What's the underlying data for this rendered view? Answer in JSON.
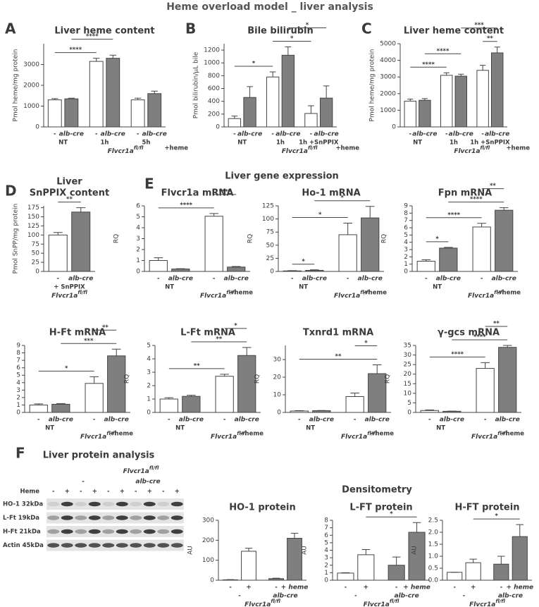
{
  "header": {
    "title": "Heme overload model _ liver analysis"
  },
  "sections": [
    {
      "letter": "E",
      "title": "Liver gene expression"
    },
    {
      "letter": "F",
      "title": "Liver protein analysis"
    },
    {
      "title": "Densitometry"
    }
  ],
  "blot": {
    "genotype": "Flvcr1a",
    "genotype_sup": "fl/fl",
    "groups": [
      "-",
      "alb-cre"
    ],
    "row_label": "Heme",
    "lanes": [
      "-",
      "+",
      "-",
      "+",
      "-",
      "+",
      "-",
      "+",
      "-",
      "+"
    ],
    "bands": [
      "HO-1 32kDa",
      "L-Ft 19kDa",
      "H-Ft 21kDa",
      "Actin 45kDa"
    ]
  },
  "chart_data": [
    {
      "type": "bar",
      "panel": "A",
      "title": "Liver heme content",
      "ylabel": "Pmol heme/mg protein",
      "categories": [
        "-",
        "alb-cre",
        "-",
        "alb-cre",
        "-",
        "alb-cre"
      ],
      "values": [
        1300,
        1350,
        3150,
        3300,
        1300,
        1600
      ],
      "errors": [
        60,
        30,
        150,
        150,
        80,
        120
      ],
      "colors": [
        "#ffffff",
        "#7f7f7f",
        "#ffffff",
        "#7f7f7f",
        "#ffffff",
        "#7f7f7f"
      ],
      "ylim": [
        0,
        4000
      ],
      "yticks": [
        0,
        1000,
        2000,
        3000
      ],
      "pairs": [
        "NT",
        "1h",
        "5h"
      ],
      "treatment": "+heme",
      "genotype": "Flvcr1a",
      "genotype_sup": "fl/fl",
      "significance": [
        {
          "label": "****",
          "bars": [
            0,
            2
          ]
        },
        {
          "label": "****",
          "bars": [
            1,
            3
          ]
        }
      ]
    },
    {
      "type": "bar",
      "panel": "B",
      "title": "Bile bilirubin",
      "ylabel": "Pmol bilirubin/μL bile",
      "categories": [
        "-",
        "alb-cre",
        "-",
        "alb-cre",
        "-",
        "alb-cre"
      ],
      "values": [
        130,
        460,
        780,
        1120,
        210,
        450
      ],
      "errors": [
        40,
        170,
        80,
        130,
        120,
        190
      ],
      "colors": [
        "#ffffff",
        "#7f7f7f",
        "#ffffff",
        "#7f7f7f",
        "#ffffff",
        "#7f7f7f"
      ],
      "ylim": [
        0,
        1300
      ],
      "yticks": [
        0,
        200,
        400,
        600,
        800,
        1000,
        1200
      ],
      "pairs": [
        "NT",
        "1h",
        "1h +SnPPIX"
      ],
      "treatment": "+heme",
      "genotype": "Flvcr1a",
      "genotype_sup": "fl/fl",
      "significance": [
        {
          "label": "*",
          "bars": [
            0,
            2
          ]
        },
        {
          "label": "*",
          "bars": [
            2,
            4
          ]
        },
        {
          "label": "*",
          "bars": [
            3,
            5
          ]
        }
      ]
    },
    {
      "type": "bar",
      "panel": "C",
      "title": "Liver heme content",
      "ylabel": "Pmol heme/mg protein",
      "categories": [
        "-",
        "alb-cre",
        "-",
        "alb-cre",
        "-",
        "alb-cre"
      ],
      "values": [
        1550,
        1600,
        3100,
        3050,
        3400,
        4450
      ],
      "errors": [
        120,
        100,
        150,
        120,
        300,
        350
      ],
      "colors": [
        "#ffffff",
        "#7f7f7f",
        "#ffffff",
        "#7f7f7f",
        "#ffffff",
        "#7f7f7f"
      ],
      "ylim": [
        0,
        5000
      ],
      "yticks": [
        0,
        1000,
        2000,
        3000,
        4000,
        5000
      ],
      "pairs": [
        "NT",
        "1h",
        "1h +SnPPIX"
      ],
      "treatment": "+heme",
      "genotype": "Flvcr1a",
      "genotype_sup": "fl/fl",
      "significance": [
        {
          "label": "****",
          "bars": [
            0,
            2
          ]
        },
        {
          "label": "****",
          "bars": [
            1,
            3
          ]
        },
        {
          "label": "**",
          "bars": [
            4,
            5
          ]
        },
        {
          "label": "***",
          "bars": [
            3,
            5
          ]
        }
      ]
    },
    {
      "type": "bar",
      "panel": "D",
      "title": [
        "Liver",
        "SnPPIX content"
      ],
      "ylabel": "Pmol SnPP/mg protein",
      "categories": [
        "-",
        "alb-cre"
      ],
      "values": [
        100,
        163
      ],
      "errors": [
        7,
        12
      ],
      "colors": [
        "#ffffff",
        "#7f7f7f"
      ],
      "ylim": [
        0,
        180
      ],
      "yticks": [
        0,
        25,
        50,
        75,
        100,
        125,
        150,
        175
      ],
      "pairs": [
        "+ SnPPIX"
      ],
      "genotype": "Flvcr1a",
      "genotype_sup": "fl/fl",
      "significance": [
        {
          "label": "**",
          "bars": [
            0,
            1
          ]
        }
      ]
    },
    {
      "type": "bar",
      "title": "Flvcr1a mRNA",
      "ylabel": "RQ",
      "categories": [
        "-",
        "alb-cre",
        "-",
        "alb-cre"
      ],
      "values": [
        1.0,
        0.22,
        5.05,
        0.4
      ],
      "errors": [
        0.25,
        0.03,
        0.25,
        0.05
      ],
      "colors": [
        "#ffffff",
        "#7f7f7f",
        "#ffffff",
        "#7f7f7f"
      ],
      "ylim": [
        0,
        6
      ],
      "yticks": [
        0,
        1,
        2,
        3,
        4,
        5,
        6
      ],
      "pairs": [
        "NT",
        null
      ],
      "treatment": "+heme",
      "genotype": "Flvcr1a",
      "genotype_sup": "fl/fl",
      "significance": [
        {
          "label": "****",
          "bars": [
            0,
            2
          ]
        },
        {
          "label": "****",
          "bars": [
            2,
            3
          ]
        }
      ]
    },
    {
      "type": "bar",
      "title": "Ho-1 mRNA",
      "ylabel": "RQ",
      "categories": [
        "-",
        "alb-cre",
        "-",
        "alb-cre"
      ],
      "values": [
        1,
        2,
        70,
        102
      ],
      "errors": [
        0.5,
        1,
        22,
        22
      ],
      "colors": [
        "#ffffff",
        "#7f7f7f",
        "#ffffff",
        "#7f7f7f"
      ],
      "ylim": [
        0,
        125
      ],
      "yticks": [
        0,
        25,
        50,
        75,
        100,
        125
      ],
      "pairs": [
        "NT",
        null
      ],
      "treatment": "+heme",
      "genotype": "Flvcr1a",
      "genotype_sup": "fl/fl",
      "significance": [
        {
          "label": "*",
          "bars": [
            0,
            1
          ]
        },
        {
          "label": "*",
          "bars": [
            0,
            2
          ]
        },
        {
          "label": "*",
          "bars": [
            1,
            3
          ]
        }
      ]
    },
    {
      "type": "bar",
      "title": "Fpn mRNA",
      "ylabel": "RQ",
      "categories": [
        "-",
        "alb-cre",
        "-",
        "alb-cre"
      ],
      "values": [
        1.4,
        3.2,
        6.1,
        8.4
      ],
      "errors": [
        0.2,
        0.1,
        0.5,
        0.35
      ],
      "colors": [
        "#ffffff",
        "#7f7f7f",
        "#ffffff",
        "#7f7f7f"
      ],
      "ylim": [
        0,
        9
      ],
      "yticks": [
        0,
        1,
        2,
        3,
        4,
        5,
        6,
        7,
        8,
        9
      ],
      "pairs": [
        "NT",
        null
      ],
      "treatment": "+heme",
      "genotype": "Flvcr1a",
      "genotype_sup": "fl/fl",
      "significance": [
        {
          "label": "*",
          "bars": [
            0,
            1
          ]
        },
        {
          "label": "****",
          "bars": [
            0,
            2
          ]
        },
        {
          "label": "****",
          "bars": [
            1,
            3
          ]
        },
        {
          "label": "**",
          "bars": [
            2,
            3
          ]
        }
      ]
    },
    {
      "type": "bar",
      "title": "H-Ft mRNA",
      "ylabel": "RQ",
      "categories": [
        "-",
        "alb-cre",
        "-",
        "alb-cre"
      ],
      "values": [
        1.0,
        1.1,
        3.9,
        7.6
      ],
      "errors": [
        0.15,
        0.1,
        0.9,
        0.9
      ],
      "colors": [
        "#ffffff",
        "#7f7f7f",
        "#ffffff",
        "#7f7f7f"
      ],
      "ylim": [
        0,
        9
      ],
      "yticks": [
        0,
        1,
        2,
        3,
        4,
        5,
        6,
        7,
        8,
        9
      ],
      "pairs": [
        "NT",
        null
      ],
      "treatment": "+heme",
      "genotype": "Flvcr1a",
      "genotype_sup": "fl/fl",
      "significance": [
        {
          "label": "*",
          "bars": [
            0,
            2
          ]
        },
        {
          "label": "***",
          "bars": [
            1,
            3
          ]
        },
        {
          "label": "**",
          "bars": [
            2,
            3
          ]
        }
      ]
    },
    {
      "type": "bar",
      "title": "L-Ft mRNA",
      "ylabel": "RQ",
      "categories": [
        "-",
        "alb-cre",
        "-",
        "alb-cre"
      ],
      "values": [
        1.0,
        1.2,
        2.7,
        4.25
      ],
      "errors": [
        0.1,
        0.08,
        0.15,
        0.6
      ],
      "colors": [
        "#ffffff",
        "#7f7f7f",
        "#ffffff",
        "#7f7f7f"
      ],
      "ylim": [
        0,
        5
      ],
      "yticks": [
        0,
        1,
        2,
        3,
        4,
        5
      ],
      "pairs": [
        "NT",
        null
      ],
      "treatment": "+heme",
      "genotype": "Flvcr1a",
      "genotype_sup": "fl/fl",
      "significance": [
        {
          "label": "**",
          "bars": [
            0,
            2
          ]
        },
        {
          "label": "**",
          "bars": [
            1,
            3
          ]
        },
        {
          "label": "*",
          "bars": [
            2,
            3
          ]
        }
      ]
    },
    {
      "type": "bar",
      "title": "Txnrd1 mRNA",
      "ylabel": "RQ",
      "categories": [
        "-",
        "alb-cre",
        "-",
        "alb-cre"
      ],
      "values": [
        0.8,
        1.0,
        9,
        22
      ],
      "errors": [
        0.2,
        0.1,
        2,
        5
      ],
      "colors": [
        "#ffffff",
        "#7f7f7f",
        "#ffffff",
        "#7f7f7f"
      ],
      "ylim": [
        0,
        38
      ],
      "yticks": [
        0,
        10,
        20,
        30
      ],
      "pairs": [
        "NT",
        null
      ],
      "treatment": "+heme",
      "genotype": "Flvcr1a",
      "genotype_sup": "fl/fl",
      "significance": [
        {
          "label": "**",
          "bars": [
            0,
            3
          ]
        },
        {
          "label": "*",
          "bars": [
            2,
            3
          ]
        }
      ]
    },
    {
      "type": "bar",
      "title": "γ-gcs mRNA",
      "ylabel": "RQ",
      "categories": [
        "-",
        "alb-cre",
        "-",
        "alb-cre"
      ],
      "values": [
        1,
        0.6,
        23,
        34
      ],
      "errors": [
        0.3,
        0.1,
        3,
        1
      ],
      "colors": [
        "#ffffff",
        "#7f7f7f",
        "#ffffff",
        "#7f7f7f"
      ],
      "ylim": [
        0,
        35
      ],
      "yticks": [
        0,
        5,
        10,
        15,
        20,
        25,
        30,
        35
      ],
      "pairs": [
        "NT",
        null
      ],
      "treatment": "+heme",
      "genotype": "Flvcr1a",
      "genotype_sup": "fl/fl",
      "significance": [
        {
          "label": "****",
          "bars": [
            0,
            2
          ]
        },
        {
          "label": "****",
          "bars": [
            1,
            3
          ]
        },
        {
          "label": "**",
          "bars": [
            2,
            3
          ]
        }
      ]
    },
    {
      "type": "bar",
      "title": "HO-1 protein",
      "ylabel": "AU",
      "categories": [
        "-",
        "+",
        "-",
        "+ heme"
      ],
      "values": [
        2,
        145,
        8,
        210
      ],
      "errors": [
        1,
        15,
        2,
        25
      ],
      "colors": [
        "#ffffff",
        "#ffffff",
        "#7f7f7f",
        "#7f7f7f"
      ],
      "ylim": [
        0,
        300
      ],
      "yticks": [
        0,
        100,
        200,
        300
      ],
      "pairs": [
        "-",
        "alb-cre"
      ],
      "genotype": "Flvcr1a",
      "genotype_sup": "fl/fl",
      "significance": []
    },
    {
      "type": "bar",
      "title": "L-FT protein",
      "ylabel": "AU",
      "categories": [
        "-",
        "+",
        "-",
        "+ heme"
      ],
      "values": [
        0.95,
        3.4,
        2.0,
        6.4
      ],
      "errors": [
        0.05,
        0.7,
        1.1,
        1.3
      ],
      "colors": [
        "#ffffff",
        "#ffffff",
        "#7f7f7f",
        "#7f7f7f"
      ],
      "ylim": [
        0,
        8
      ],
      "yticks": [
        0,
        1,
        2,
        3,
        4,
        5,
        6,
        7,
        8
      ],
      "pairs": [
        "-",
        "alb-cre"
      ],
      "genotype": "Flvcr1a",
      "genotype_sup": "fl/fl",
      "significance": [
        {
          "label": "*",
          "bars": [
            1,
            3
          ]
        }
      ]
    },
    {
      "type": "bar",
      "title": "H-FT protein",
      "ylabel": "AU",
      "categories": [
        "-",
        "+",
        "-",
        "+ heme"
      ],
      "values": [
        0.33,
        0.73,
        0.67,
        1.82
      ],
      "errors": [
        0,
        0.15,
        0.33,
        0.5
      ],
      "colors": [
        "#ffffff",
        "#ffffff",
        "#7f7f7f",
        "#7f7f7f"
      ],
      "ylim": [
        0,
        2.5
      ],
      "yticks": [
        {
          "value": 0,
          "label": "0.0"
        },
        0.5,
        {
          "value": 1,
          "label": "1.0"
        },
        1.5,
        {
          "value": 2,
          "label": "2.0"
        },
        2.5
      ],
      "pairs": [
        "-",
        "alb-cre"
      ],
      "genotype": "Flvcr1a",
      "genotype_sup": "fl/fl",
      "significance": [
        {
          "label": "*",
          "bars": [
            1,
            3
          ]
        }
      ]
    }
  ]
}
